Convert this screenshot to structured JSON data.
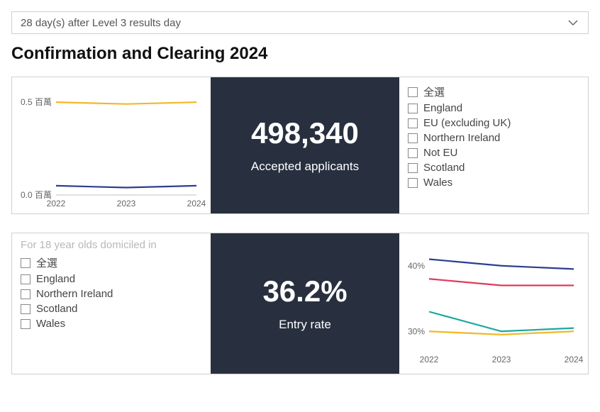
{
  "dropdown": {
    "label": "28 day(s) after Level 3 results day"
  },
  "page_title": "Confirmation and Clearing 2024",
  "panel1": {
    "metric": {
      "value": "498,340",
      "label": "Accepted applicants"
    },
    "chart": {
      "type": "line",
      "x_ticks": [
        "2022",
        "2023",
        "2024"
      ],
      "y_ticks": [
        {
          "v": 0.0,
          "label": "0.0 百萬"
        },
        {
          "v": 0.5,
          "label": "0.5 百萬"
        }
      ],
      "ylim": [
        0.0,
        0.55
      ],
      "series": [
        {
          "name": "yellow",
          "color": "#f2b827",
          "values": [
            0.5,
            0.49,
            0.5
          ]
        },
        {
          "name": "blue",
          "color": "#2c3e90",
          "values": [
            0.05,
            0.04,
            0.05
          ]
        }
      ],
      "axis_color": "#c0c0c0",
      "tick_font_size": 12,
      "tick_color": "#666666"
    },
    "checkboxes": [
      {
        "label": "全選"
      },
      {
        "label": "England"
      },
      {
        "label": "EU (excluding UK)"
      },
      {
        "label": "Northern Ireland"
      },
      {
        "label": "Not EU"
      },
      {
        "label": "Scotland"
      },
      {
        "label": "Wales"
      }
    ]
  },
  "panel2": {
    "hint": "For 18 year olds domiciled in",
    "checkboxes": [
      {
        "label": "全選"
      },
      {
        "label": "England"
      },
      {
        "label": "Northern Ireland"
      },
      {
        "label": "Scotland"
      },
      {
        "label": "Wales"
      }
    ],
    "metric": {
      "value": "36.2%",
      "label": "Entry rate"
    },
    "chart": {
      "type": "line",
      "x_ticks": [
        "2022",
        "2023",
        "2024"
      ],
      "y_ticks": [
        {
          "v": 30,
          "label": "30%"
        },
        {
          "v": 40,
          "label": "40%"
        }
      ],
      "ylim": [
        27,
        43
      ],
      "series": [
        {
          "name": "blue",
          "color": "#2c3e90",
          "values": [
            41.0,
            40.0,
            39.5
          ]
        },
        {
          "name": "red",
          "color": "#e03a5a",
          "values": [
            38.0,
            37.0,
            37.0
          ]
        },
        {
          "name": "teal",
          "color": "#1aa99c",
          "values": [
            33.0,
            30.0,
            30.5
          ]
        },
        {
          "name": "yellow",
          "color": "#f2b827",
          "values": [
            30.0,
            29.5,
            30.0
          ]
        }
      ],
      "axis_color": "#c0c0c0",
      "tick_font_size": 12,
      "tick_color": "#666666"
    }
  },
  "colors": {
    "metric_bg": "#28303f",
    "border": "#d0d0d0"
  }
}
